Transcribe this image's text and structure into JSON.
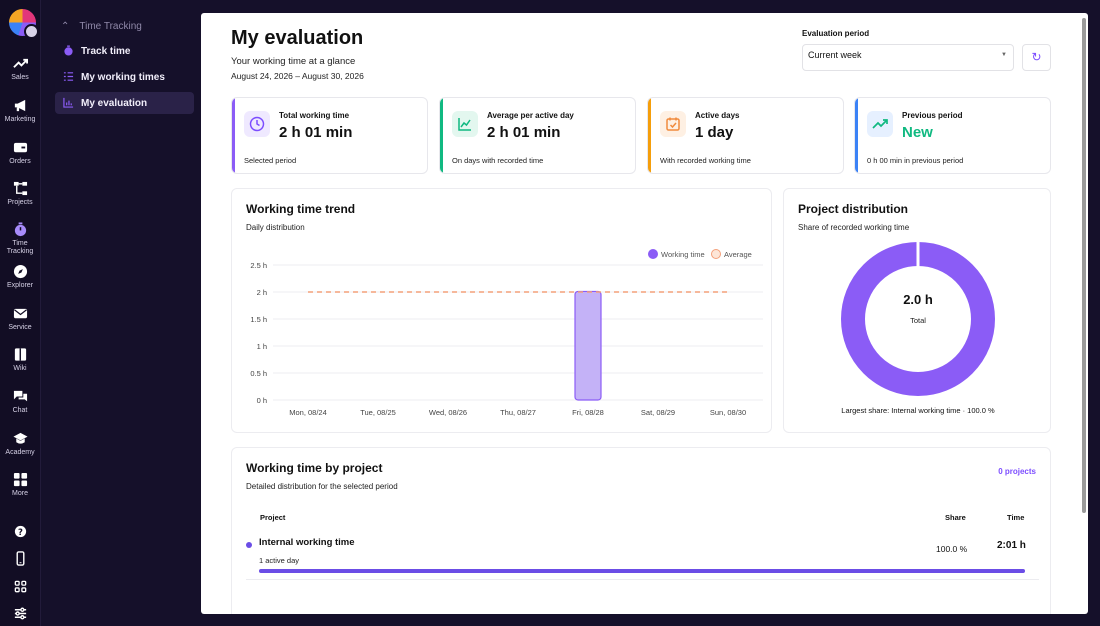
{
  "rail": {
    "items": [
      {
        "label": "Sales",
        "icon": "trending-up-icon"
      },
      {
        "label": "Marketing",
        "icon": "megaphone-icon"
      },
      {
        "label": "Orders",
        "icon": "wallet-icon"
      },
      {
        "label": "Projects",
        "icon": "network-icon"
      },
      {
        "label": "Time",
        "label2": "Tracking",
        "icon": "stopwatch-icon"
      },
      {
        "label": "Explorer",
        "icon": "compass-icon"
      },
      {
        "label": "Service",
        "icon": "mail-icon"
      },
      {
        "label": "Wiki",
        "icon": "book-icon"
      },
      {
        "label": "Chat",
        "icon": "chat-icon"
      },
      {
        "label": "Academy",
        "icon": "graduation-cap-icon"
      },
      {
        "label": "More",
        "icon": "grid-icon"
      }
    ],
    "bottom": [
      "help-icon",
      "phone-icon",
      "apps-icon",
      "sliders-icon"
    ]
  },
  "menu": {
    "section": "Time Tracking",
    "items": [
      {
        "label": "Track time",
        "icon": "stopwatch-icon"
      },
      {
        "label": "My working times",
        "icon": "list-icon"
      },
      {
        "label": "My evaluation",
        "icon": "bar-chart-icon",
        "active": true
      }
    ]
  },
  "header": {
    "title": "My evaluation",
    "subtitle": "Your working time at a glance",
    "date_range": "August 24, 2026 – August 30, 2026"
  },
  "period": {
    "label": "Evaluation period",
    "value": "Current week",
    "refresh_icon": "refresh-icon"
  },
  "stats": [
    {
      "title": "Total working time",
      "value": "2 h 01 min",
      "note": "Selected period",
      "color": "#8b5cf6",
      "icon": "clock-icon"
    },
    {
      "title": "Average per active day",
      "value": "2 h 01 min",
      "note": "On days with recorded time",
      "color": "#10b981",
      "icon": "chart-line-icon"
    },
    {
      "title": "Active days",
      "value": "1 day",
      "note": "With recorded working time",
      "color": "#f59e0b",
      "icon": "calendar-check-icon"
    },
    {
      "title": "Previous period",
      "value": "New",
      "note": "0 h 00 min in previous period",
      "color": "#3b82f6",
      "value_color": "#10b981",
      "icon": "trending-up-icon"
    }
  ],
  "trend": {
    "title": "Working time trend",
    "subtitle": "Daily distribution",
    "legend_working": "Working time",
    "legend_average": "Average"
  },
  "chart_data": {
    "type": "bar",
    "categories": [
      "Mon, 08/24",
      "Tue, 08/25",
      "Wed, 08/26",
      "Thu, 08/27",
      "Fri, 08/28",
      "Sat, 08/29",
      "Sun, 08/30"
    ],
    "series": [
      {
        "name": "Working time",
        "values": [
          0,
          0,
          0,
          0,
          2.01,
          0,
          0
        ],
        "color": "#8b5cf6"
      },
      {
        "name": "Average",
        "values": [
          2,
          2,
          2,
          2,
          2,
          2,
          2
        ],
        "color": "#f4a07a",
        "style": "dashed"
      }
    ],
    "yticks": [
      "0 h",
      "0.5 h",
      "1 h",
      "1.5 h",
      "2 h",
      "2.5 h"
    ],
    "ylim": [
      0,
      2.5
    ],
    "grid": true,
    "legend": "top-right"
  },
  "distribution": {
    "title": "Project distribution",
    "subtitle": "Share of recorded working time",
    "center_value": "2.0 h",
    "center_label": "Total",
    "footer": "Largest share: Internal working time · 100.0 %",
    "share": 100,
    "color": "#8b5cf6"
  },
  "projects": {
    "title": "Working time by project",
    "subtitle": "Detailed distribution for the selected period",
    "count_link": "0 projects",
    "col_project": "Project",
    "col_share": "Share",
    "col_time": "Time",
    "rows": [
      {
        "name": "Internal working time",
        "meta": "1 active day",
        "share": "100.0 %",
        "time": "2:01 h",
        "fill": 100
      }
    ]
  }
}
